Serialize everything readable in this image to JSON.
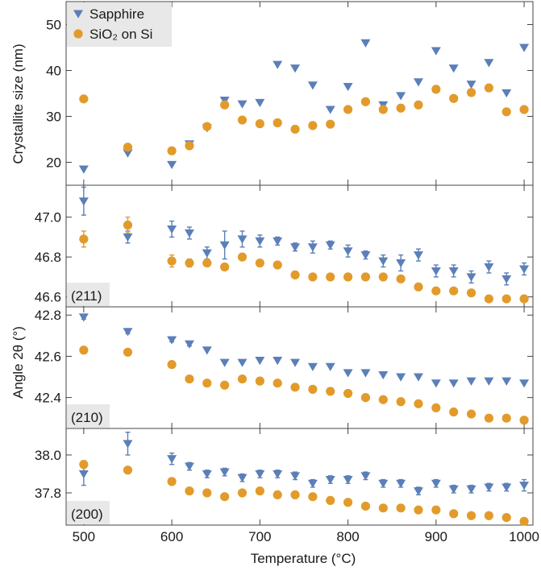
{
  "colors": {
    "sapphire": "#5b7fb8",
    "sio2": "#e29b2a",
    "label_bg": "#e8e8e8"
  },
  "chart_data": {
    "type": "scatter",
    "xlabel": "Temperature (°C)",
    "xlim": [
      480,
      1010
    ],
    "xticks": [
      500,
      600,
      700,
      800,
      900,
      1000
    ],
    "legend": {
      "position": "top-left",
      "entries": [
        {
          "label": "Sapphire",
          "marker": "triangle-down",
          "color": "#5b7fb8"
        },
        {
          "label": "SiO₂ on Si",
          "marker": "circle",
          "color": "#e29b2a"
        }
      ]
    },
    "ylabel_top": "Crystallite size (nm)",
    "ylabel_shared": "Angle 2θ (°)",
    "panels": [
      {
        "id": "size",
        "label": "",
        "ylim": [
          15,
          55
        ],
        "yticks": [
          20,
          30,
          40,
          50
        ],
        "yticklabels": [
          "20",
          "30",
          "40",
          "50"
        ],
        "series": [
          {
            "name": "Sapphire",
            "marker": "triangle-down",
            "color": "#5b7fb8",
            "points": [
              [
                500,
                18.5
              ],
              [
                550,
                22
              ],
              [
                600,
                19.5
              ],
              [
                620,
                24
              ],
              [
                640,
                27.5
              ],
              [
                660,
                33.5
              ],
              [
                680,
                32.7
              ],
              [
                700,
                33
              ],
              [
                720,
                41.3
              ],
              [
                740,
                40.5
              ],
              [
                760,
                36.8
              ],
              [
                780,
                31.5
              ],
              [
                800,
                36.5
              ],
              [
                820,
                46
              ],
              [
                840,
                32.5
              ],
              [
                860,
                34.5
              ],
              [
                880,
                37.5
              ],
              [
                900,
                44.3
              ],
              [
                920,
                40.5
              ],
              [
                940,
                37
              ],
              [
                960,
                41.7
              ],
              [
                980,
                35.1
              ],
              [
                1000,
                45
              ]
            ]
          },
          {
            "name": "SiO₂ on Si",
            "marker": "circle",
            "color": "#e29b2a",
            "points": [
              [
                500,
                33.8
              ],
              [
                550,
                23.3
              ],
              [
                600,
                22.5
              ],
              [
                620,
                23.6
              ],
              [
                640,
                27.8
              ],
              [
                660,
                32.5
              ],
              [
                680,
                29.2
              ],
              [
                700,
                28.4
              ],
              [
                720,
                28.6
              ],
              [
                740,
                27.2
              ],
              [
                760,
                28
              ],
              [
                780,
                28.3
              ],
              [
                800,
                31.5
              ],
              [
                820,
                33.2
              ],
              [
                840,
                31.5
              ],
              [
                860,
                31.8
              ],
              [
                880,
                32.5
              ],
              [
                900,
                35.9
              ],
              [
                920,
                33.9
              ],
              [
                940,
                35.2
              ],
              [
                960,
                36.2
              ],
              [
                980,
                31
              ],
              [
                1000,
                31.5
              ]
            ]
          }
        ]
      },
      {
        "id": "211",
        "label": "(211)",
        "ylim": [
          46.55,
          47.16
        ],
        "yticks": [
          46.6,
          46.8,
          47.0
        ],
        "yticklabels": [
          "46.6",
          "46.8",
          "47.0"
        ],
        "series": [
          {
            "name": "Sapphire",
            "marker": "triangle-down",
            "color": "#5b7fb8",
            "points": [
              [
                500,
                47.08,
                0.07
              ],
              [
                550,
                46.9,
                0.03
              ],
              [
                600,
                46.94,
                0.04
              ],
              [
                620,
                46.92,
                0.03
              ],
              [
                640,
                46.82,
                0.03
              ],
              [
                660,
                46.86,
                0.07
              ],
              [
                680,
                46.89,
                0.04
              ],
              [
                700,
                46.88,
                0.03
              ],
              [
                720,
                46.88,
                0.02
              ],
              [
                740,
                46.85,
                0.02
              ],
              [
                760,
                46.85,
                0.03
              ],
              [
                780,
                46.86,
                0.02
              ],
              [
                800,
                46.83,
                0.03
              ],
              [
                820,
                46.81,
                0.02
              ],
              [
                840,
                46.78,
                0.03
              ],
              [
                860,
                46.77,
                0.04
              ],
              [
                880,
                46.81,
                0.03
              ],
              [
                900,
                46.73,
                0.03
              ],
              [
                920,
                46.73,
                0.03
              ],
              [
                940,
                46.7,
                0.03
              ],
              [
                960,
                46.75,
                0.03
              ],
              [
                980,
                46.69,
                0.03
              ],
              [
                1000,
                46.74,
                0.03
              ]
            ]
          },
          {
            "name": "SiO₂ on Si",
            "marker": "circle",
            "color": "#e29b2a",
            "points": [
              [
                500,
                46.89,
                0.04
              ],
              [
                550,
                46.96,
                0.04
              ],
              [
                600,
                46.78,
                0.03
              ],
              [
                620,
                46.77,
                0.02
              ],
              [
                640,
                46.77,
                0
              ],
              [
                660,
                46.75,
                0
              ],
              [
                680,
                46.8,
                0
              ],
              [
                700,
                46.77,
                0
              ],
              [
                720,
                46.76,
                0
              ],
              [
                740,
                46.71,
                0
              ],
              [
                760,
                46.7,
                0
              ],
              [
                780,
                46.7,
                0
              ],
              [
                800,
                46.7,
                0
              ],
              [
                820,
                46.7,
                0
              ],
              [
                840,
                46.7,
                0
              ],
              [
                860,
                46.69,
                0
              ],
              [
                880,
                46.65,
                0
              ],
              [
                900,
                46.63,
                0
              ],
              [
                920,
                46.63,
                0
              ],
              [
                940,
                46.62,
                0
              ],
              [
                960,
                46.59,
                0
              ],
              [
                980,
                46.59,
                0
              ],
              [
                1000,
                46.59,
                0
              ]
            ]
          }
        ]
      },
      {
        "id": "210",
        "label": "(210)",
        "ylim": [
          42.25,
          42.84
        ],
        "yticks": [
          42.4,
          42.6,
          42.8
        ],
        "yticklabels": [
          "42.4",
          "42.6",
          "42.8"
        ],
        "series": [
          {
            "name": "Sapphire",
            "marker": "triangle-down",
            "color": "#5b7fb8",
            "points": [
              [
                500,
                42.79,
                0.01
              ],
              [
                550,
                42.72,
                0.01
              ],
              [
                600,
                42.68,
                0.01
              ],
              [
                620,
                42.66,
                0.01
              ],
              [
                640,
                42.63,
                0
              ],
              [
                660,
                42.57,
                0
              ],
              [
                680,
                42.57,
                0
              ],
              [
                700,
                42.58,
                0
              ],
              [
                720,
                42.58,
                0
              ],
              [
                740,
                42.57,
                0
              ],
              [
                760,
                42.55,
                0
              ],
              [
                780,
                42.55,
                0
              ],
              [
                800,
                42.52,
                0
              ],
              [
                820,
                42.52,
                0
              ],
              [
                840,
                42.51,
                0
              ],
              [
                860,
                42.5,
                0
              ],
              [
                880,
                42.5,
                0
              ],
              [
                900,
                42.47,
                0
              ],
              [
                920,
                42.47,
                0
              ],
              [
                940,
                42.48,
                0
              ],
              [
                960,
                42.48,
                0
              ],
              [
                980,
                42.48,
                0
              ],
              [
                1000,
                42.47,
                0
              ]
            ]
          },
          {
            "name": "SiO₂ on Si",
            "marker": "circle",
            "color": "#e29b2a",
            "points": [
              [
                500,
                42.63,
                0
              ],
              [
                550,
                42.62,
                0
              ],
              [
                600,
                42.56,
                0
              ],
              [
                620,
                42.49,
                0
              ],
              [
                640,
                42.47,
                0
              ],
              [
                660,
                42.46,
                0
              ],
              [
                680,
                42.49,
                0
              ],
              [
                700,
                42.48,
                0
              ],
              [
                720,
                42.47,
                0
              ],
              [
                740,
                42.45,
                0
              ],
              [
                760,
                42.44,
                0
              ],
              [
                780,
                42.43,
                0
              ],
              [
                800,
                42.42,
                0
              ],
              [
                820,
                42.4,
                0
              ],
              [
                840,
                42.39,
                0
              ],
              [
                860,
                42.38,
                0
              ],
              [
                880,
                42.37,
                0
              ],
              [
                900,
                42.35,
                0
              ],
              [
                920,
                42.33,
                0
              ],
              [
                940,
                42.32,
                0
              ],
              [
                960,
                42.3,
                0
              ],
              [
                980,
                42.3,
                0
              ],
              [
                1000,
                42.29,
                0
              ]
            ]
          }
        ]
      },
      {
        "id": "200",
        "label": "(200)",
        "ylim": [
          37.63,
          38.14
        ],
        "yticks": [
          37.8,
          38.0
        ],
        "yticklabels": [
          "37.8",
          "38.0"
        ],
        "series": [
          {
            "name": "Sapphire",
            "marker": "triangle-down",
            "color": "#5b7fb8",
            "points": [
              [
                500,
                37.9,
                0.06
              ],
              [
                550,
                38.06,
                0.06
              ],
              [
                600,
                37.98,
                0.03
              ],
              [
                620,
                37.94,
                0.02
              ],
              [
                640,
                37.9,
                0.02
              ],
              [
                660,
                37.91,
                0.02
              ],
              [
                680,
                37.88,
                0.02
              ],
              [
                700,
                37.9,
                0.02
              ],
              [
                720,
                37.9,
                0.02
              ],
              [
                740,
                37.89,
                0.02
              ],
              [
                760,
                37.85,
                0.02
              ],
              [
                780,
                37.87,
                0.02
              ],
              [
                800,
                37.87,
                0.02
              ],
              [
                820,
                37.89,
                0.02
              ],
              [
                840,
                37.85,
                0.02
              ],
              [
                860,
                37.85,
                0.02
              ],
              [
                880,
                37.81,
                0.02
              ],
              [
                900,
                37.85,
                0.02
              ],
              [
                920,
                37.82,
                0.02
              ],
              [
                940,
                37.82,
                0.02
              ],
              [
                960,
                37.83,
                0.02
              ],
              [
                980,
                37.83,
                0.02
              ],
              [
                1000,
                37.84,
                0.03
              ]
            ]
          },
          {
            "name": "SiO₂ on Si",
            "marker": "circle",
            "color": "#e29b2a",
            "points": [
              [
                500,
                37.95,
                0.02
              ],
              [
                550,
                37.92,
                0.01
              ],
              [
                600,
                37.86,
                0
              ],
              [
                620,
                37.81,
                0
              ],
              [
                640,
                37.8,
                0
              ],
              [
                660,
                37.78,
                0
              ],
              [
                680,
                37.8,
                0
              ],
              [
                700,
                37.81,
                0
              ],
              [
                720,
                37.79,
                0
              ],
              [
                740,
                37.79,
                0
              ],
              [
                760,
                37.78,
                0
              ],
              [
                780,
                37.76,
                0
              ],
              [
                800,
                37.75,
                0
              ],
              [
                820,
                37.73,
                0
              ],
              [
                840,
                37.72,
                0
              ],
              [
                860,
                37.72,
                0
              ],
              [
                880,
                37.71,
                0
              ],
              [
                900,
                37.71,
                0
              ],
              [
                920,
                37.69,
                0
              ],
              [
                940,
                37.68,
                0
              ],
              [
                960,
                37.68,
                0
              ],
              [
                980,
                37.67,
                0
              ],
              [
                1000,
                37.65,
                0
              ]
            ]
          }
        ]
      }
    ]
  }
}
